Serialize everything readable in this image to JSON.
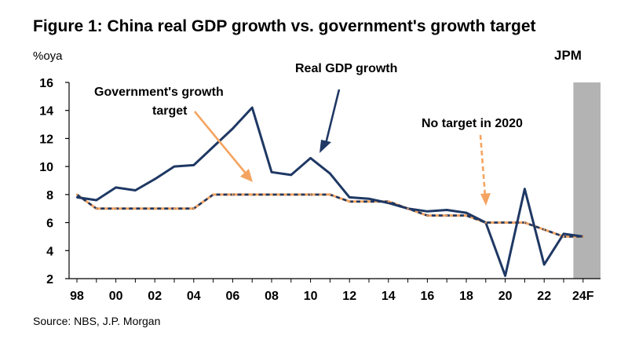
{
  "chart_data": {
    "type": "line",
    "title": "Figure 1: China real GDP growth vs. government's growth target",
    "ylabel": "%oya",
    "brand": "JPM",
    "source": "Source: NBS, J.P. Morgan",
    "ylim": [
      2,
      16
    ],
    "yticks": [
      "2",
      "4",
      "6",
      "8",
      "10",
      "12",
      "14",
      "16"
    ],
    "xticks": [
      "98",
      "00",
      "02",
      "04",
      "06",
      "08",
      "10",
      "12",
      "14",
      "16",
      "18",
      "20",
      "22",
      "24F"
    ],
    "x": [
      1998,
      1999,
      2000,
      2001,
      2002,
      2003,
      2004,
      2005,
      2006,
      2007,
      2008,
      2009,
      2010,
      2011,
      2012,
      2013,
      2014,
      2015,
      2016,
      2017,
      2018,
      2019,
      2020,
      2021,
      2022,
      2023,
      2024
    ],
    "forecast_from": 2024,
    "series": [
      {
        "name": "Real GDP growth",
        "color": "#1f3864",
        "values": [
          7.8,
          7.6,
          8.5,
          8.3,
          9.1,
          10.0,
          10.1,
          11.4,
          12.7,
          14.2,
          9.6,
          9.4,
          10.6,
          9.5,
          7.8,
          7.7,
          7.4,
          7.0,
          6.8,
          6.9,
          6.7,
          6.0,
          2.2,
          8.4,
          3.0,
          5.2,
          5.0
        ]
      },
      {
        "name": "Government's growth target",
        "color": "#f4a460",
        "dash_color": "#1f3864",
        "values": [
          8.0,
          7.0,
          7.0,
          7.0,
          7.0,
          7.0,
          7.0,
          8.0,
          8.0,
          8.0,
          8.0,
          8.0,
          8.0,
          8.0,
          7.5,
          7.5,
          7.5,
          7.0,
          6.5,
          6.5,
          6.5,
          6.0,
          6.0,
          6.0,
          5.5,
          5.0,
          5.0
        ]
      }
    ],
    "annotations": {
      "real_gdp": "Real GDP growth",
      "target_line1": "Government's  growth",
      "target_line2": "target",
      "no_target": "No target in 2020"
    }
  }
}
